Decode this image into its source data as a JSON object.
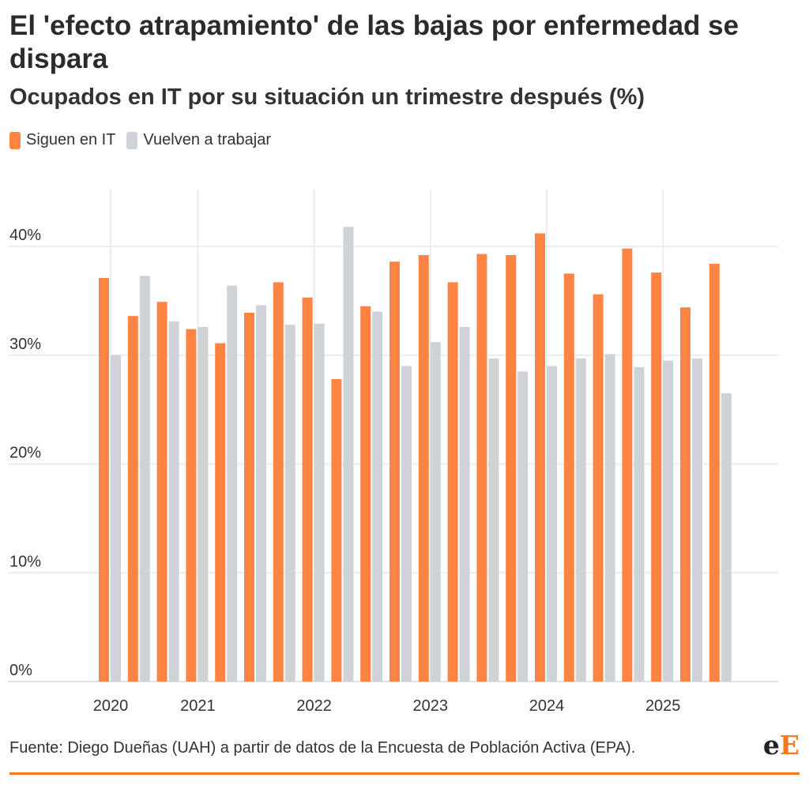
{
  "header": {
    "title": "El 'efecto atrapamiento' de las bajas por enfermedad se dispara",
    "subtitle": "Ocupados en IT por su situación un trimestre después (%)"
  },
  "legend": [
    {
      "label": "Siguen en IT",
      "color": "#ff8442"
    },
    {
      "label": "Vuelven a trabajar",
      "color": "#cfd3d8"
    }
  ],
  "chart_data": {
    "type": "bar",
    "title": "El 'efecto atrapamiento' de las bajas por enfermedad se dispara",
    "subtitle": "Ocupados en IT por su situación un trimestre después (%)",
    "xlabel": "",
    "ylabel": "%",
    "ylim": [
      0,
      45
    ],
    "yticks": [
      0,
      10,
      20,
      30,
      40
    ],
    "ytick_labels": [
      "0%",
      "10%",
      "20%",
      "30%",
      "40%"
    ],
    "x_tick_labels": [
      "2020",
      "2021",
      "2022",
      "2023",
      "2024",
      "2025"
    ],
    "x_tick_positions": [
      0,
      3,
      7,
      11,
      15,
      19
    ],
    "grid": true,
    "series": [
      {
        "name": "Siguen en IT",
        "color": "#ff8442",
        "values": [
          37.1,
          33.6,
          34.9,
          32.4,
          31.1,
          33.9,
          36.7,
          35.3,
          27.8,
          34.5,
          38.6,
          39.2,
          36.7,
          39.3,
          39.2,
          41.2,
          37.5,
          35.6,
          39.8,
          37.6,
          34.4,
          38.4
        ]
      },
      {
        "name": "Vuelven a trabajar",
        "color": "#cfd3d8",
        "values": [
          30.0,
          37.3,
          33.1,
          32.6,
          36.4,
          34.6,
          32.8,
          32.9,
          41.8,
          34.0,
          29.0,
          31.2,
          32.6,
          29.7,
          28.5,
          29.0,
          29.7,
          30.1,
          28.9,
          29.5,
          29.7,
          26.5
        ]
      }
    ]
  },
  "footer": {
    "source": "Fuente: Diego Dueñas (UAH) a partir de datos de la Encuesta de Población Activa (EPA).",
    "logo_left": "e",
    "logo_right": "E"
  }
}
